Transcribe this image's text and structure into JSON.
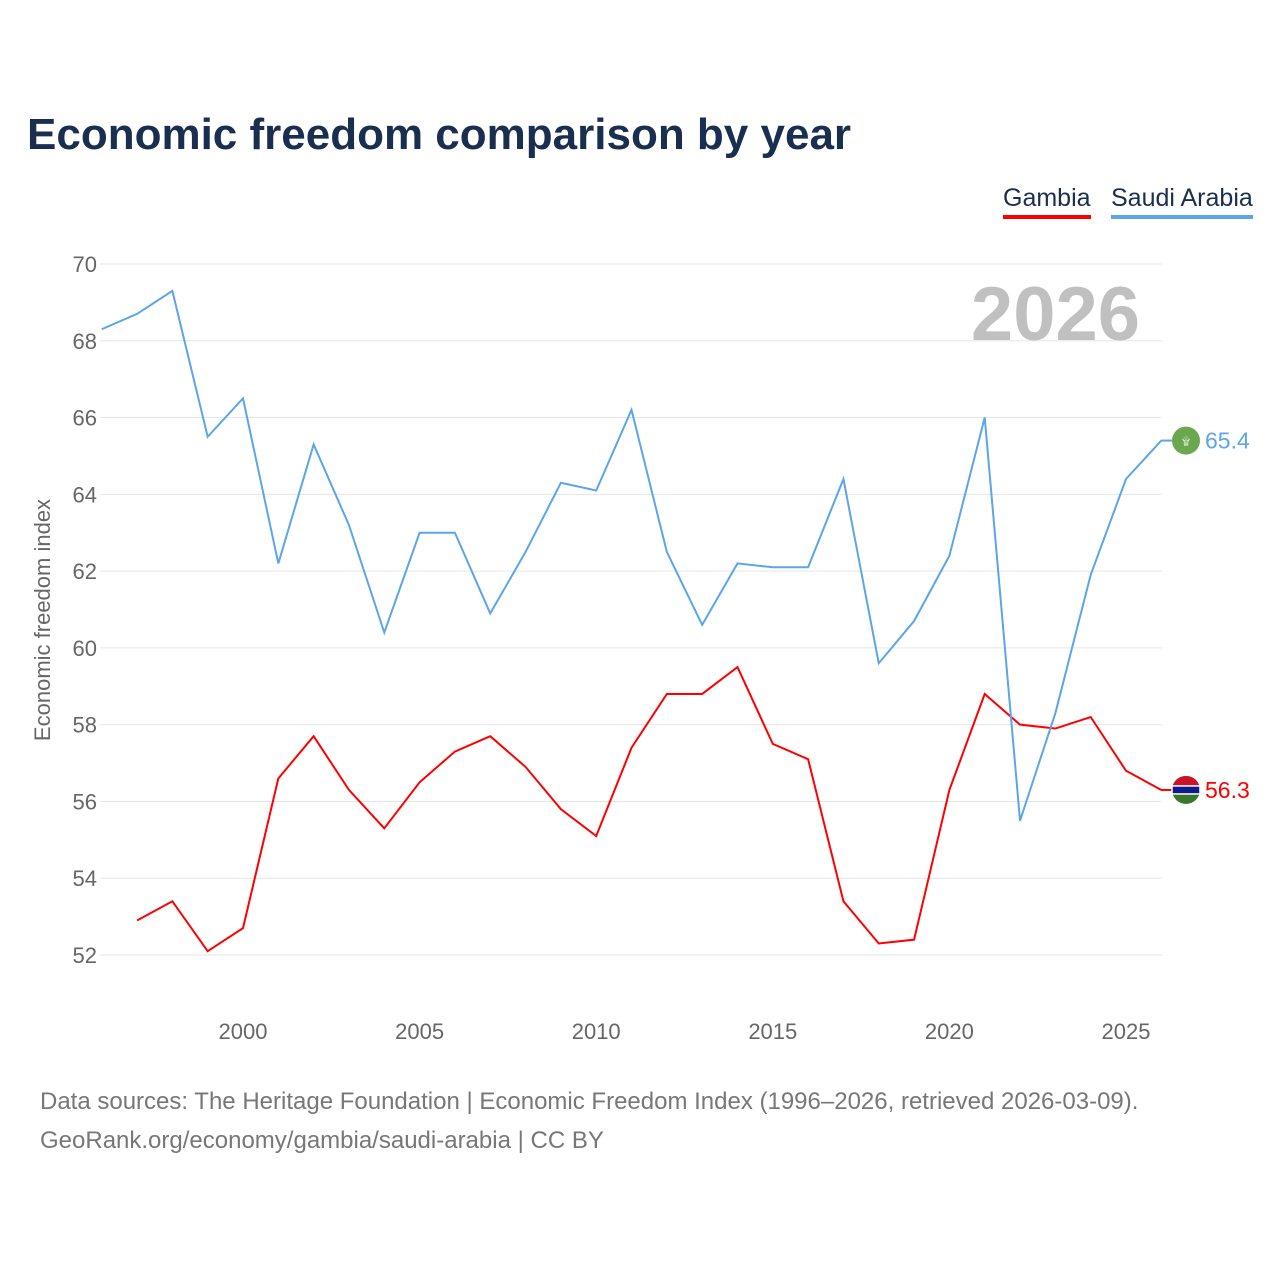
{
  "title": "Economic freedom comparison by year",
  "source_line1": "Data sources: The Heritage Foundation | Economic Freedom Index (1996–2026, retrieved 2026-03-09).",
  "source_line2": "GeoRank.org/economy/gambia/saudi-arabia | CC BY",
  "chart_data": {
    "type": "line",
    "title": "Economic freedom comparison by year",
    "ylabel": "Economic freedom index",
    "xlabel": "",
    "year_label": "2026",
    "xlim": [
      1996,
      2026
    ],
    "ylim": [
      51,
      70.5
    ],
    "yticks": [
      52,
      54,
      56,
      58,
      60,
      62,
      64,
      66,
      68,
      70
    ],
    "xticks": [
      2000,
      2005,
      2010,
      2015,
      2020,
      2025
    ],
    "grid": true,
    "legend_position": "top-right",
    "series": [
      {
        "name": "Gambia",
        "color": "#ff0000",
        "end_label": "56.3",
        "x": [
          1997,
          1998,
          1999,
          2000,
          2001,
          2002,
          2003,
          2004,
          2005,
          2006,
          2007,
          2008,
          2009,
          2010,
          2011,
          2012,
          2013,
          2014,
          2015,
          2016,
          2017,
          2018,
          2019,
          2020,
          2021,
          2022,
          2023,
          2024,
          2025,
          2026
        ],
        "values": [
          52.9,
          53.4,
          52.1,
          52.7,
          56.6,
          57.7,
          56.3,
          55.3,
          56.5,
          57.3,
          57.7,
          56.9,
          55.8,
          55.1,
          57.4,
          58.8,
          58.8,
          59.5,
          57.5,
          57.1,
          53.4,
          52.3,
          52.4,
          56.3,
          58.8,
          58.0,
          57.9,
          58.2,
          56.8,
          56.3
        ]
      },
      {
        "name": "Saudi Arabia",
        "color": "#5ca5e8",
        "end_label": "65.4",
        "x": [
          1996,
          1997,
          1998,
          1999,
          2000,
          2001,
          2002,
          2003,
          2004,
          2005,
          2006,
          2007,
          2008,
          2009,
          2010,
          2011,
          2012,
          2013,
          2014,
          2015,
          2016,
          2017,
          2018,
          2019,
          2020,
          2021,
          2022,
          2023,
          2024,
          2025,
          2026
        ],
        "values": [
          68.3,
          68.7,
          69.3,
          65.5,
          66.5,
          62.2,
          65.3,
          63.2,
          60.4,
          63.0,
          63.0,
          60.9,
          62.5,
          64.3,
          64.1,
          66.2,
          62.5,
          60.6,
          62.2,
          62.1,
          62.1,
          64.4,
          59.6,
          60.7,
          62.4,
          66.0,
          55.5,
          58.3,
          61.9,
          64.4,
          65.4
        ]
      }
    ]
  }
}
